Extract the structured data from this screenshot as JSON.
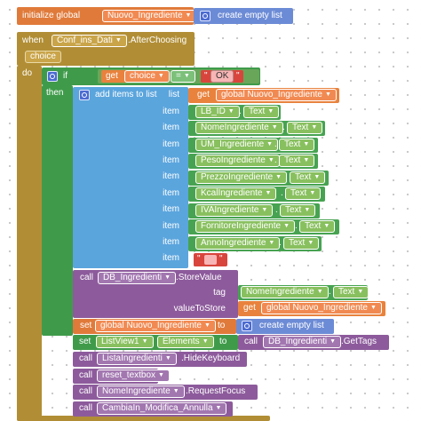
{
  "init": {
    "label": "initialize global",
    "var": "Nuovo_Ingrediente",
    "to": "to",
    "list_label": "create empty list"
  },
  "event": {
    "when": "when",
    "component": "Conf_ins_Dati",
    "event": ".AfterChoosing",
    "param": "choice",
    "do": "do"
  },
  "if_block": {
    "if": "if",
    "get": "get",
    "var": "choice",
    "op": "=",
    "text": "OK",
    "then": "then"
  },
  "add_items": {
    "label": "add items to list",
    "list": "list",
    "get": "get",
    "var": "global Nuovo_Ingrediente",
    "item": "item",
    "items": [
      "LB_ID",
      "NomeIngrediente",
      "UM_Ingrediente",
      "PesoIngrediente",
      "PrezzoIngrediente",
      "KcalIngrediente",
      "IVAIngrediente",
      "FornitoreIngrediente",
      "AnnoIngrediente"
    ],
    "prop": "Text"
  },
  "store": {
    "call": "call",
    "component": "DB_Ingredienti",
    "method": ".StoreValue",
    "tag": "tag",
    "tag_comp": "NomeIngrediente",
    "tag_prop": "Text",
    "value": "valueToStore",
    "get": "get",
    "var": "global Nuovo_Ingrediente"
  },
  "set_global": {
    "set": "set",
    "var": "global Nuovo_Ingrediente",
    "to": "to",
    "list_label": "create empty list"
  },
  "set_list": {
    "set": "set",
    "component": "ListView1",
    "prop": "Elements",
    "to": "to",
    "call": "call",
    "db": "DB_Ingredienti",
    "method": ".GetTags"
  },
  "calls": [
    {
      "call": "call",
      "component": "ListaIngredienti",
      "method": ".HideKeyboard"
    },
    {
      "call": "call",
      "component": "reset_textbox",
      "method": ""
    },
    {
      "call": "call",
      "component": "NomeIngrediente",
      "method": ".RequestFocus"
    },
    {
      "call": "call",
      "component": "CambiaIn_Modifica_Annulla",
      "method": ""
    }
  ]
}
